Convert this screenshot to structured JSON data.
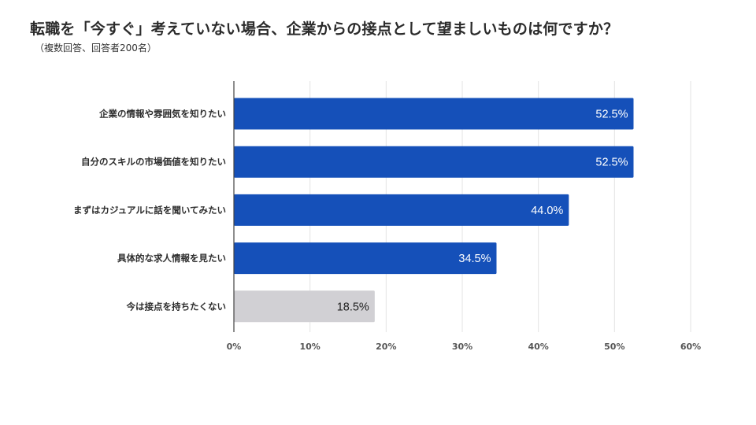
{
  "title": "転職を「今すぐ」考えていない場合、企業からの接点として望ましいものは何ですか？",
  "subtitle": "（複数回答、回答者200名）",
  "colors": {
    "primary_bar": "#1550b9",
    "secondary_bar": "#d1d0d4",
    "grid": "#e3e3e3",
    "axis": "#444444"
  },
  "chart_data": {
    "type": "bar",
    "orientation": "horizontal",
    "title": "転職を「今すぐ」考えていない場合、企業からの接点として望ましいものは何ですか？",
    "subtitle": "（複数回答、回答者200名）",
    "categories": [
      "企業の情報や雰囲気を知りたい",
      "自分のスキルの市場価値を知りたい",
      "まずはカジュアルに話を聞いてみたい",
      "具体的な求人情報を見たい",
      "今は接点を持ちたくない"
    ],
    "values": [
      52.5,
      52.5,
      44.0,
      34.5,
      18.5
    ],
    "value_labels": [
      "52.5%",
      "52.5%",
      "44.0%",
      "34.5%",
      "18.5%"
    ],
    "bar_colors": [
      "#1550b9",
      "#1550b9",
      "#1550b9",
      "#1550b9",
      "#d1d0d4"
    ],
    "xlim": [
      0,
      60
    ],
    "xticks": [
      0,
      10,
      20,
      30,
      40,
      50,
      60
    ],
    "xtick_labels": [
      "0%",
      "10%",
      "20%",
      "30%",
      "40%",
      "50%",
      "60%"
    ],
    "xlabel": "",
    "ylabel": "",
    "grid": true,
    "legend": "none"
  }
}
